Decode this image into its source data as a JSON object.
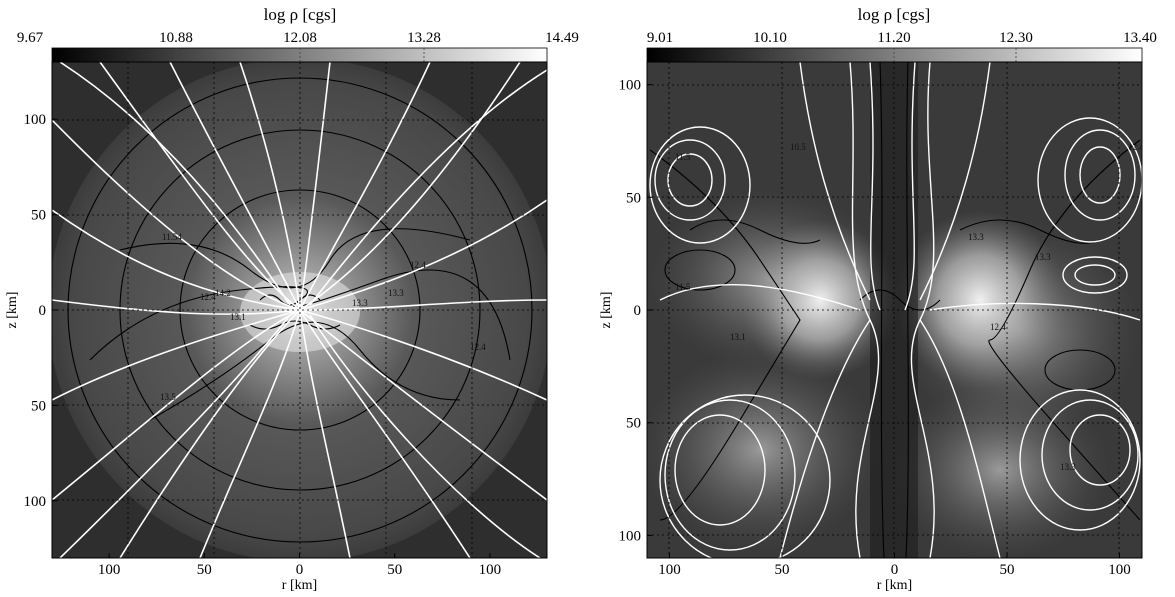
{
  "chart_data": [
    {
      "type": "heatmap",
      "title": "log ρ [cgs]",
      "colorbar_ticks": [
        "9.67",
        "10.88",
        "12.08",
        "13.28",
        "14.49"
      ],
      "colorbar_range": [
        9.67,
        14.49
      ],
      "xlabel": "r [km]",
      "ylabel": "z [km]",
      "xlim": [
        -130,
        130
      ],
      "ylim": [
        -130,
        130
      ],
      "x_ticks": [
        {
          "v": -100,
          "label": "100"
        },
        {
          "v": -50,
          "label": "50"
        },
        {
          "v": 0,
          "label": "0"
        },
        {
          "v": 50,
          "label": "50"
        },
        {
          "v": 100,
          "label": "100"
        }
      ],
      "y_ticks": [
        {
          "v": 100,
          "label": "100"
        },
        {
          "v": 50,
          "label": "50"
        },
        {
          "v": 0,
          "label": "0"
        },
        {
          "v": -50,
          "label": "50"
        },
        {
          "v": -100,
          "label": "100"
        }
      ],
      "contour_labels": [
        "12.4",
        "12.4",
        "11.54",
        "13.1",
        "13.3",
        "12.4",
        "13.5",
        "14.2",
        "13.3"
      ],
      "grid": true
    },
    {
      "type": "heatmap",
      "title": "log ρ [cgs]",
      "colorbar_ticks": [
        "9.01",
        "10.10",
        "11.20",
        "12.30",
        "13.40"
      ],
      "colorbar_range": [
        9.01,
        13.4
      ],
      "xlabel": "r [km]",
      "ylabel": "z [km]",
      "xlim": [
        -110,
        110
      ],
      "ylim": [
        -110,
        110
      ],
      "x_ticks": [
        {
          "v": -100,
          "label": "100"
        },
        {
          "v": -50,
          "label": "50"
        },
        {
          "v": 0,
          "label": "0"
        },
        {
          "v": 50,
          "label": "50"
        },
        {
          "v": 100,
          "label": "100"
        }
      ],
      "y_ticks": [
        {
          "v": 100,
          "label": "100"
        },
        {
          "v": 50,
          "label": "50"
        },
        {
          "v": 0,
          "label": "0"
        },
        {
          "v": -50,
          "label": "50"
        },
        {
          "v": -100,
          "label": "100"
        }
      ],
      "contour_labels": [
        "10.5",
        "11.5",
        "12.4",
        "13.3",
        "13.3",
        "11.5",
        "13.1",
        "12.4",
        "13.3"
      ],
      "grid": true
    }
  ]
}
